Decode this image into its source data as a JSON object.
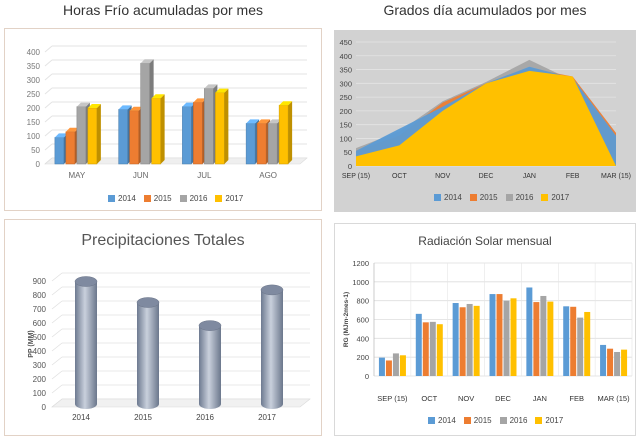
{
  "colors": {
    "s2014": "#5b9bd5",
    "s2015": "#ed7d31",
    "s2016": "#a5a5a5",
    "s2017": "#ffc000",
    "cyl": "#8e9bb0"
  },
  "chart_data": [
    {
      "id": "horas_frio",
      "type": "bar",
      "title": "Horas Frío acumuladas por mes",
      "categories": [
        "MAY",
        "JUN",
        "JUL",
        "AGO"
      ],
      "ylim": [
        0,
        400
      ],
      "yticks": [
        0,
        50,
        100,
        150,
        200,
        250,
        300,
        350,
        400
      ],
      "series": [
        {
          "name": "2014",
          "values": [
            95,
            195,
            205,
            145
          ]
        },
        {
          "name": "2015",
          "values": [
            115,
            190,
            220,
            145
          ]
        },
        {
          "name": "2016",
          "values": [
            205,
            360,
            270,
            145
          ]
        },
        {
          "name": "2017",
          "values": [
            200,
            235,
            255,
            210
          ]
        }
      ],
      "legend_position": "bottom",
      "grid": true
    },
    {
      "id": "grados_dia",
      "type": "area",
      "title": "Grados día acumulados por mes",
      "categories": [
        "SEP (15)",
        "OCT",
        "NOV",
        "DEC",
        "JAN",
        "FEB",
        "MAR (15)"
      ],
      "ylim": [
        0,
        450
      ],
      "yticks": [
        0,
        50,
        100,
        150,
        200,
        250,
        300,
        350,
        400,
        450
      ],
      "series": [
        {
          "name": "2014",
          "values": [
            55,
            135,
            215,
            300,
            360,
            320,
            110
          ]
        },
        {
          "name": "2015",
          "values": [
            55,
            110,
            230,
            300,
            355,
            325,
            120
          ]
        },
        {
          "name": "2016",
          "values": [
            65,
            125,
            235,
            305,
            385,
            310,
            100
          ]
        },
        {
          "name": "2017",
          "values": [
            35,
            75,
            200,
            300,
            345,
            325,
            0
          ]
        }
      ],
      "legend_position": "bottom",
      "grid": true
    },
    {
      "id": "precipitaciones",
      "type": "bar",
      "title": "Precipitaciones Totales",
      "categories": [
        "2014",
        "2015",
        "2016",
        "2017"
      ],
      "ylabel": "PP (MM)",
      "ylim": [
        0,
        900
      ],
      "yticks": [
        0,
        100,
        200,
        300,
        400,
        500,
        600,
        700,
        800,
        900
      ],
      "values": [
        875,
        725,
        560,
        815
      ],
      "grid": true
    },
    {
      "id": "radiacion",
      "type": "bar",
      "title": "Radiación Solar mensual",
      "categories": [
        "SEP (15)",
        "OCT",
        "NOV",
        "DEC",
        "JAN",
        "FEB",
        "MAR (15)"
      ],
      "ylabel": "RG (MJm-2mes-1)",
      "ylim": [
        0,
        1200
      ],
      "yticks": [
        0,
        100,
        200,
        300,
        400,
        500,
        600,
        700,
        800,
        900,
        1000,
        1100,
        1200
      ],
      "series": [
        {
          "name": "2014",
          "values": [
            195,
            660,
            775,
            870,
            940,
            740,
            330
          ]
        },
        {
          "name": "2015",
          "values": [
            165,
            570,
            730,
            870,
            785,
            735,
            290
          ]
        },
        {
          "name": "2016",
          "values": [
            240,
            575,
            765,
            800,
            850,
            620,
            255
          ]
        },
        {
          "name": "2017",
          "values": [
            220,
            550,
            745,
            825,
            790,
            680,
            280
          ]
        }
      ],
      "legend_position": "bottom",
      "grid": true
    }
  ]
}
